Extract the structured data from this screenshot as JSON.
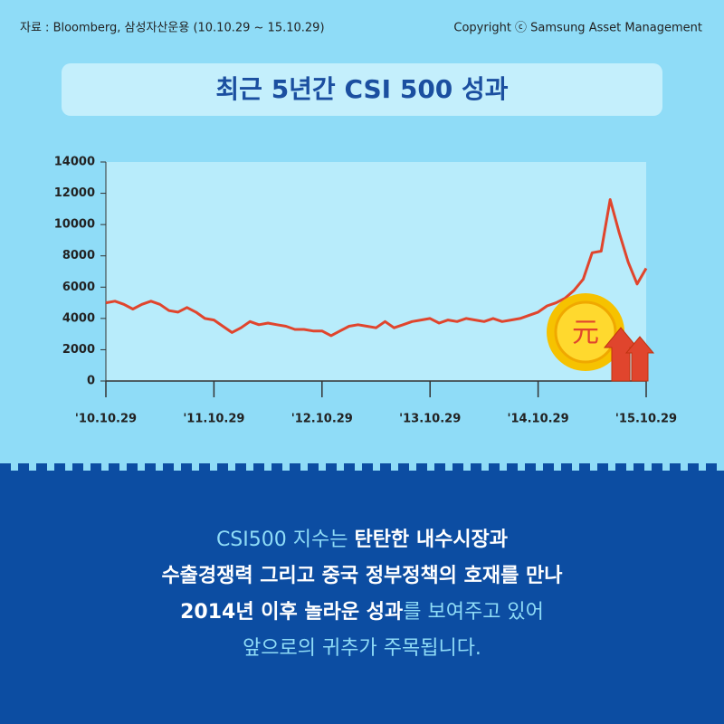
{
  "header": {
    "source": "자료 : Bloomberg, 삼성자산운용 (10.10.29 ~ 15.10.29)",
    "copyright": "Copyright ⓒ Samsung Asset Management"
  },
  "chart_data": {
    "type": "line",
    "title": "최근 5년간 CSI 500 성과",
    "x_labels": [
      "'10.10.29",
      "'11.10.29",
      "'12.10.29",
      "'13.10.29",
      "'14.10.29",
      "'15.10.29"
    ],
    "series": [
      {
        "name": "CSI 500",
        "color": "#e0452d",
        "values": [
          5000,
          5100,
          4900,
          4600,
          4900,
          5100,
          4900,
          4500,
          4400,
          4700,
          4400,
          4000,
          3900,
          3500,
          3100,
          3400,
          3800,
          3600,
          3700,
          3600,
          3500,
          3300,
          3300,
          3200,
          3200,
          2900,
          3200,
          3500,
          3600,
          3500,
          3400,
          3800,
          3400,
          3600,
          3800,
          3900,
          4000,
          3700,
          3900,
          3800,
          4000,
          3900,
          3800,
          4000,
          3800,
          3900,
          4000,
          4200,
          4400,
          4800,
          5000,
          5300,
          5800,
          6500,
          8200,
          8300,
          11600,
          9500,
          7600,
          6200,
          7200
        ]
      }
    ],
    "ylim": [
      0,
      14000
    ],
    "yticks": [
      0,
      2000,
      4000,
      6000,
      8000,
      10000,
      12000,
      14000
    ],
    "coin_label": "元"
  },
  "text": {
    "lines": [
      [
        {
          "text": "CSI500 지수는 ",
          "emphasis": false
        },
        {
          "text": "탄탄한 내수시장과",
          "emphasis": true
        }
      ],
      [
        {
          "text": "수출경쟁력 그리고 중국 정부정책의 호재를 만나",
          "emphasis": true
        }
      ],
      [
        {
          "text": "2014년 이후 놀라운 성과",
          "emphasis": true
        },
        {
          "text": "를 보여주고 있어",
          "emphasis": false
        }
      ],
      [
        {
          "text": "앞으로의 귀추가 주목됩니다.",
          "emphasis": false
        }
      ]
    ]
  }
}
